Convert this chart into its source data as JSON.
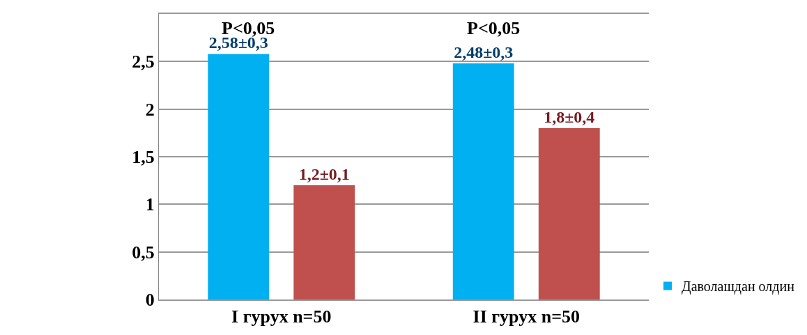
{
  "chart_data": {
    "type": "bar",
    "categories": [
      "I гурух n=50",
      "II гурух n=50"
    ],
    "series": [
      {
        "name": "Даволашдан олдин",
        "color": "#00b0f0",
        "values": [
          2.58,
          2.48
        ],
        "value_labels": [
          "2,58±0,3",
          "2,48±0,3"
        ]
      },
      {
        "color": "#c0504d",
        "values": [
          1.2,
          1.8
        ],
        "value_labels": [
          "1,2±0,1",
          "1,8±0,4"
        ]
      }
    ],
    "ylim": [
      0,
      3
    ],
    "yticks": [
      0,
      {
        "value": 0.5,
        "label": "0,5"
      },
      1,
      {
        "value": 1.5,
        "label": "1,5"
      },
      2,
      {
        "value": 2.5,
        "label": "2,5"
      },
      {
        "value": 3,
        "label": null
      }
    ],
    "grid": "y",
    "legend": "right",
    "annotations": [
      "P<0,05",
      "P<0,05"
    ]
  }
}
